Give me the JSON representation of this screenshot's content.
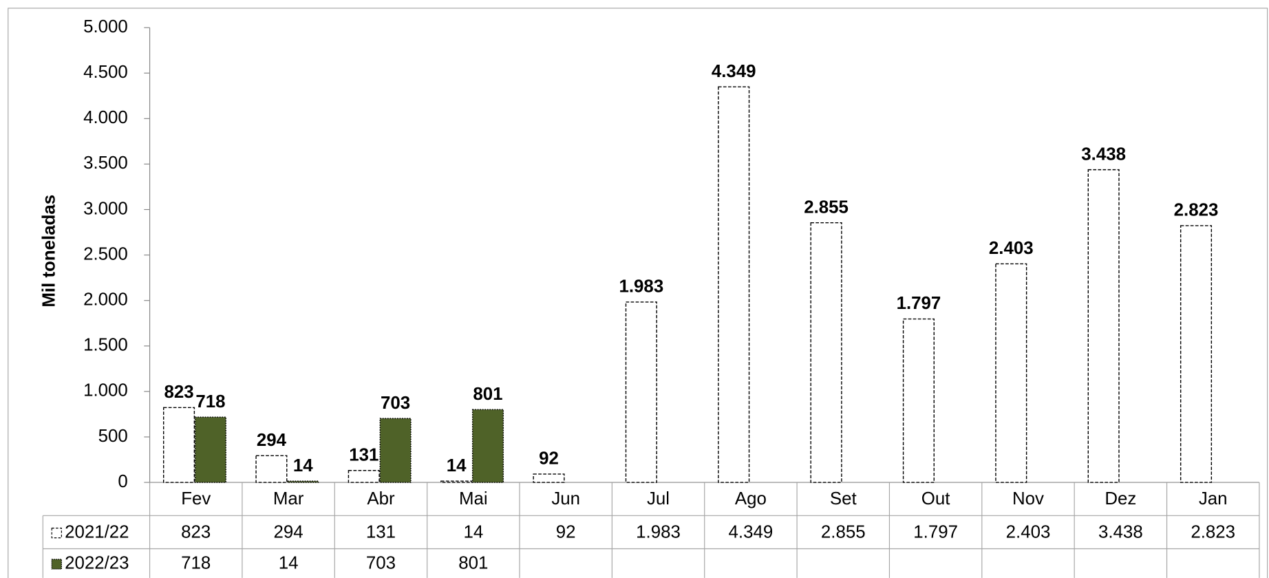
{
  "chart_data": {
    "type": "bar",
    "y_label": "Mil toneladas",
    "categories": [
      "Fev",
      "Mar",
      "Abr",
      "Mai",
      "Jun",
      "Jul",
      "Ago",
      "Set",
      "Out",
      "Nov",
      "Dez",
      "Jan"
    ],
    "series": [
      {
        "name": "2021/22",
        "color": "#ffffff",
        "border": "dashed",
        "label_color": "#595959",
        "values": [
          823,
          294,
          131,
          14,
          92,
          1983,
          4349,
          2855,
          1797,
          2403,
          3438,
          2823
        ],
        "value_labels": [
          "823",
          "294",
          "131",
          "14",
          "92",
          "1.983",
          "4.349",
          "2.855",
          "1.797",
          "2.403",
          "3.438",
          "2.823"
        ]
      },
      {
        "name": "2022/23",
        "color": "#4f6228",
        "border": "dotted",
        "label_color": "#000000",
        "value_label_colors": [
          "#000000",
          "#000000",
          "#000000",
          "#ff0000",
          null,
          null,
          null,
          null,
          null,
          null,
          null,
          null
        ],
        "values": [
          718,
          14,
          703,
          801,
          null,
          null,
          null,
          null,
          null,
          null,
          null,
          null
        ],
        "value_labels": [
          "718",
          "14",
          "703",
          "801",
          null,
          null,
          null,
          null,
          null,
          null,
          null,
          null
        ]
      }
    ],
    "ylim": [
      0,
      5000
    ],
    "yticks": [
      0,
      500,
      {
        "value": 1000,
        "label": "1.000"
      },
      {
        "value": 1500,
        "label": "1.500"
      },
      {
        "value": 2000,
        "label": "2.000"
      },
      {
        "value": 2500,
        "label": "2.500"
      },
      {
        "value": 3000,
        "label": "3.000"
      },
      {
        "value": 3500,
        "label": "3.500"
      },
      {
        "value": 4000,
        "label": "4.000"
      },
      {
        "value": 4500,
        "label": "4.500"
      },
      {
        "value": 5000,
        "label": "5.000"
      }
    ],
    "data_table": true
  }
}
